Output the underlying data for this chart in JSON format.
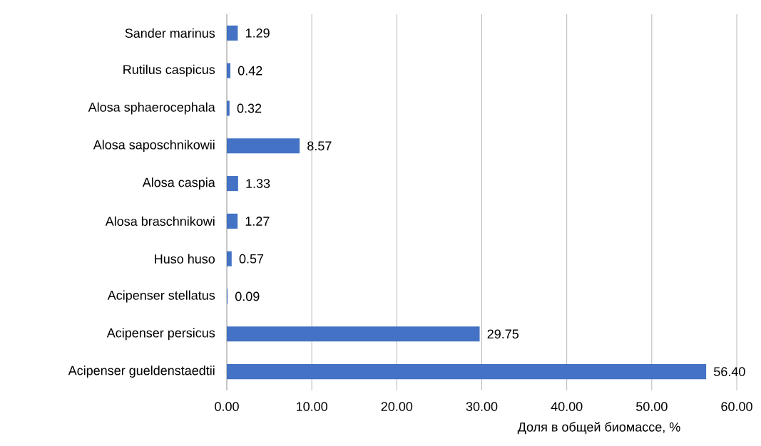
{
  "chart_data": {
    "type": "bar",
    "orientation": "horizontal",
    "xlabel": "Доля в общей биомассе, %",
    "categories": [
      "Sander marinus",
      "Rutilus caspicus",
      "Alosa sphaerocephala",
      "Alosa saposchnikowii",
      "Alosa caspia",
      "Alosa braschnikowi",
      "Huso huso",
      "Acipenser stellatus",
      "Acipenser persicus",
      "Acipenser gueldenstaedtii"
    ],
    "values": [
      1.29,
      0.42,
      0.32,
      8.57,
      1.33,
      1.27,
      0.57,
      0.09,
      29.75,
      56.4
    ],
    "value_labels": [
      "1.29",
      "0.42",
      "0.32",
      "8.57",
      "1.33",
      "1.27",
      "0.57",
      "0.09",
      "29.75",
      "56.40"
    ],
    "color": "#4472c4",
    "xlim": [
      0,
      60
    ],
    "xticks": [
      {
        "value": 0,
        "label": "0.00"
      },
      {
        "value": 10,
        "label": "10.00"
      },
      {
        "value": 20,
        "label": "20.00"
      },
      {
        "value": 30,
        "label": "30.00"
      },
      {
        "value": 40,
        "label": "40.00"
      },
      {
        "value": 50,
        "label": "50.00"
      },
      {
        "value": 60,
        "label": "60.00"
      }
    ],
    "grid": "x"
  }
}
